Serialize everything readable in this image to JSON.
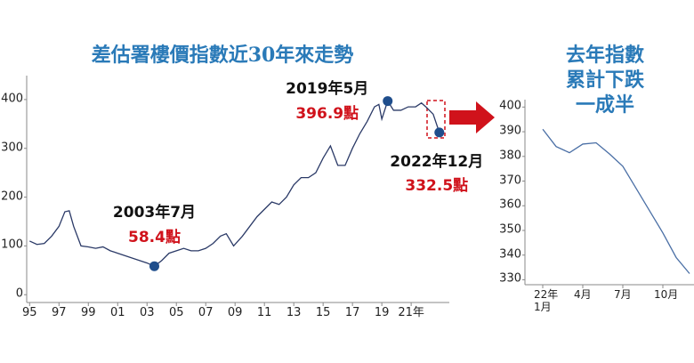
{
  "chart_data": [
    {
      "type": "line",
      "title": "差估署樓價指數近30年來走勢",
      "color": "#2b3a67",
      "x": [
        1995.0,
        1995.5,
        1996.0,
        1996.5,
        1997.0,
        1997.4,
        1997.7,
        1998.0,
        1998.5,
        1999.0,
        1999.5,
        2000.0,
        2000.5,
        2001.0,
        2001.5,
        2002.0,
        2002.5,
        2003.0,
        2003.5,
        2004.0,
        2004.5,
        2005.0,
        2005.5,
        2006.0,
        2006.5,
        2007.0,
        2007.5,
        2008.0,
        2008.4,
        2008.9,
        2009.5,
        2010.0,
        2010.5,
        2011.0,
        2011.5,
        2012.0,
        2012.5,
        2013.0,
        2013.5,
        2014.0,
        2014.5,
        2015.0,
        2015.5,
        2016.0,
        2016.5,
        2017.0,
        2017.5,
        2018.0,
        2018.5,
        2018.8,
        2019.0,
        2019.4,
        2019.8,
        2020.3,
        2020.8,
        2021.3,
        2021.7,
        2022.0,
        2022.5,
        2022.92
      ],
      "values": [
        110,
        103,
        105,
        120,
        140,
        170,
        172,
        140,
        100,
        98,
        95,
        98,
        90,
        85,
        80,
        75,
        70,
        65,
        58.4,
        70,
        85,
        90,
        95,
        90,
        90,
        95,
        105,
        120,
        125,
        100,
        120,
        140,
        160,
        175,
        190,
        185,
        200,
        225,
        240,
        240,
        250,
        280,
        305,
        265,
        265,
        300,
        330,
        355,
        385,
        390,
        360,
        396.9,
        378,
        378,
        385,
        385,
        393,
        385,
        370,
        332.5
      ],
      "xlim": [
        1994.8,
        2023.6
      ],
      "xticks": [
        {
          "value": 1995,
          "label": "95"
        },
        {
          "value": 1997,
          "label": "97"
        },
        {
          "value": 1999,
          "label": "99"
        },
        {
          "value": 2001,
          "label": "01"
        },
        {
          "value": 2003,
          "label": "03"
        },
        {
          "value": 2005,
          "label": "05"
        },
        {
          "value": 2007,
          "label": "07"
        },
        {
          "value": 2009,
          "label": "09"
        },
        {
          "value": 2011,
          "label": "11"
        },
        {
          "value": 2013,
          "label": "13"
        },
        {
          "value": 2015,
          "label": "15"
        },
        {
          "value": 2017,
          "label": "17"
        },
        {
          "value": 2019,
          "label": "19"
        },
        {
          "value": 2021,
          "label": "21年"
        }
      ],
      "ylim": [
        -16,
        449
      ],
      "yticks": [
        0,
        100,
        200,
        300,
        400
      ],
      "annotations": [
        {
          "x": 2019.4,
          "value": 396.9,
          "label": "2019年5月",
          "value_label": "396.9點"
        },
        {
          "x": 2003.5,
          "value": 58.4,
          "label": "2003年7月",
          "value_label": "58.4點"
        },
        {
          "x": 2022.92,
          "value": 332.5,
          "label": "2022年12月",
          "value_label": "332.5點"
        }
      ]
    },
    {
      "type": "line",
      "title": "去年指數\n累計下跌一成半",
      "color": "#4a6fa5",
      "categories": [
        "22年\n1月",
        null,
        null,
        "4月",
        null,
        null,
        "7月",
        null,
        null,
        "10月",
        null,
        null
      ],
      "values": [
        391,
        384,
        381.5,
        385,
        385.5,
        381,
        376,
        367,
        358,
        349,
        339,
        332.5
      ],
      "ylim": [
        328,
        403
      ],
      "yticks": [
        330,
        340,
        350,
        360,
        370,
        380,
        390,
        400
      ]
    }
  ]
}
